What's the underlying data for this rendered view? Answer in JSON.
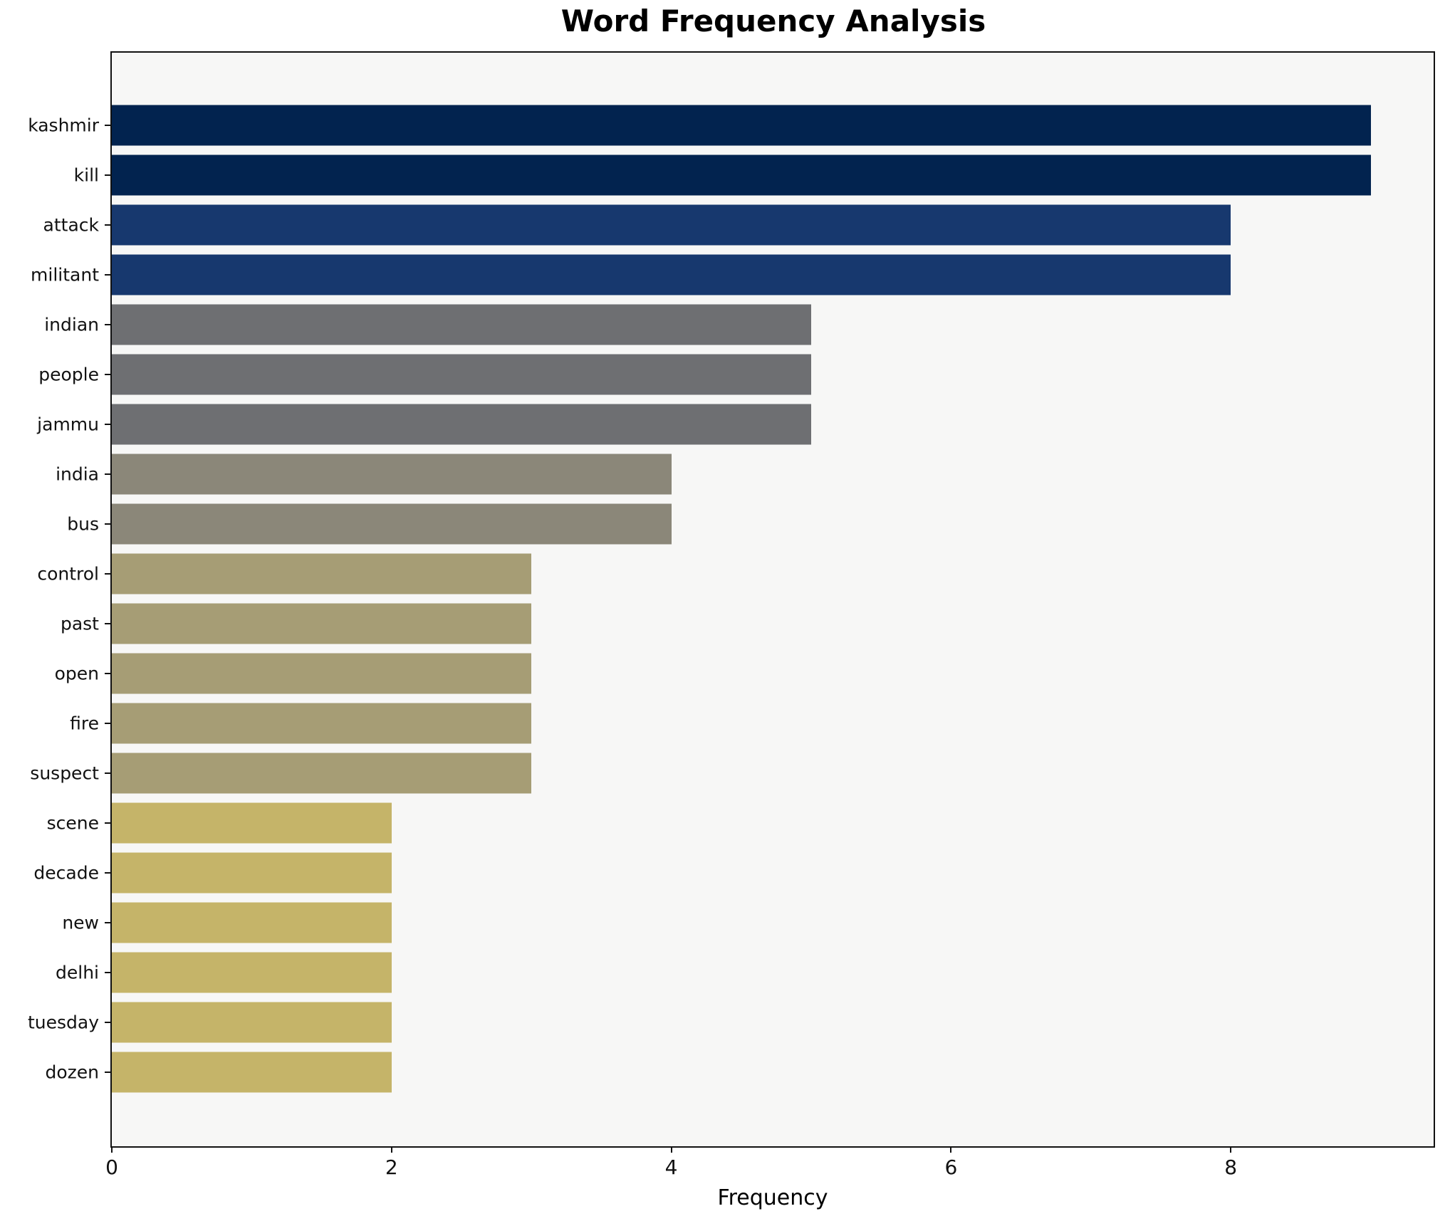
{
  "chart_data": {
    "type": "bar",
    "orientation": "horizontal",
    "title": "Word Frequency Analysis",
    "xlabel": "Frequency",
    "ylabel": "",
    "categories": [
      "kashmir",
      "kill",
      "attack",
      "militant",
      "indian",
      "people",
      "jammu",
      "india",
      "bus",
      "control",
      "past",
      "open",
      "fire",
      "suspect",
      "scene",
      "decade",
      "new",
      "delhi",
      "tuesday",
      "dozen"
    ],
    "values": [
      9,
      9,
      8,
      8,
      5,
      5,
      5,
      4,
      4,
      3,
      3,
      3,
      3,
      3,
      2,
      2,
      2,
      2,
      2,
      2
    ],
    "bar_colors": [
      "#02234f",
      "#02234f",
      "#17386e",
      "#17386e",
      "#6e6f72",
      "#6e6f72",
      "#6e6f72",
      "#8b8779",
      "#8b8779",
      "#a69d75",
      "#a69d75",
      "#a69d75",
      "#a69d75",
      "#a69d75",
      "#c5b469",
      "#c5b469",
      "#c5b469",
      "#c5b469",
      "#c5b469",
      "#c5b469"
    ],
    "xlim": [
      0,
      9.45
    ],
    "xticks": [
      0,
      2,
      4,
      6,
      8
    ],
    "grid": false,
    "legend": null
  },
  "style": {
    "plot_background": "#f7f7f6",
    "figure_background": "#ffffff",
    "spine_color": "#111111",
    "text_color": "#000000"
  }
}
